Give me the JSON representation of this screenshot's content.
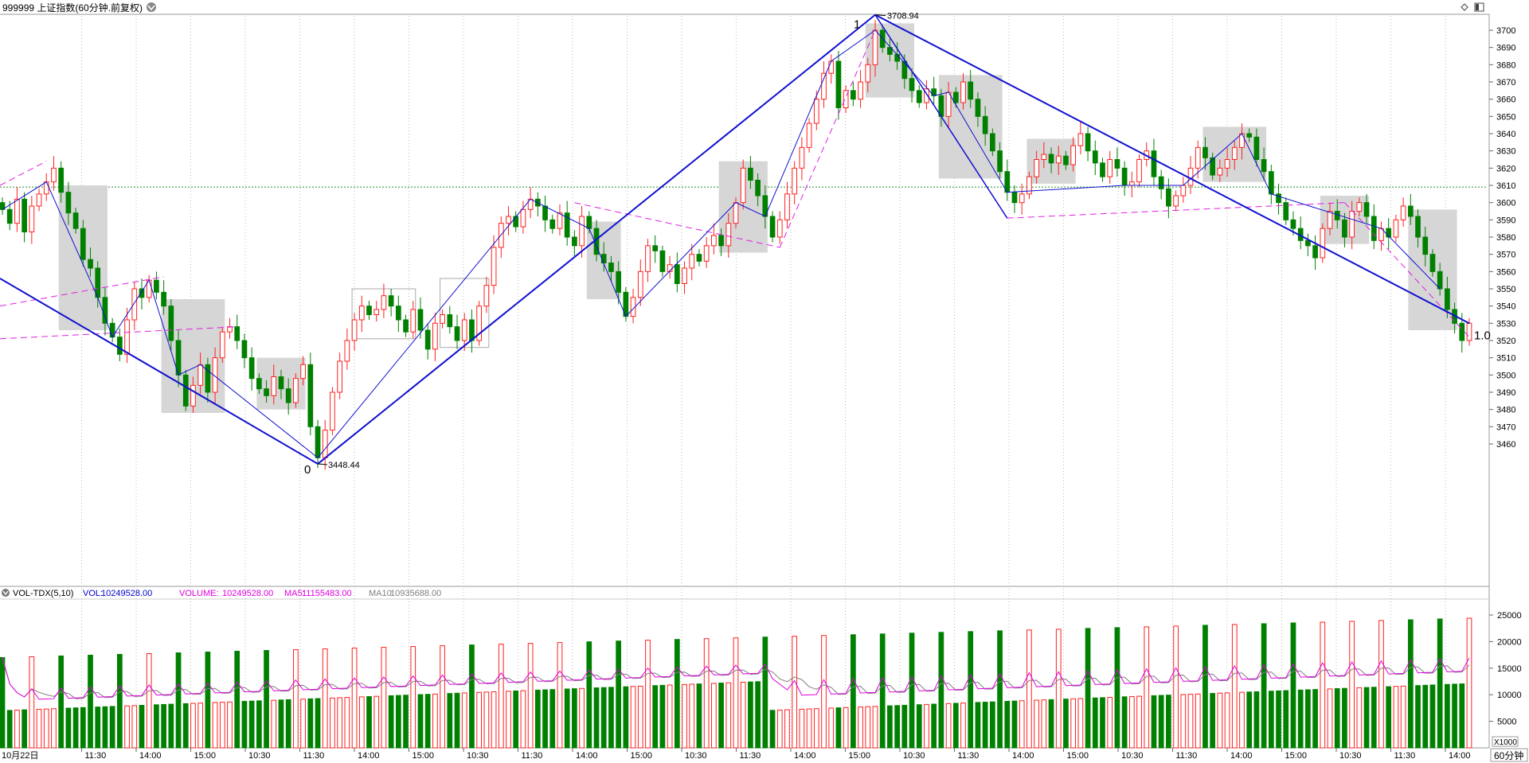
{
  "header": {
    "title": "999999 上证指数(60分钟.前复权)"
  },
  "volume_header": {
    "name": "VOL-TDX(5,10)",
    "vol_label": "VOL:",
    "vol_value": "10249528.00",
    "volume_label": "VOLUME:",
    "volume_value": "10249528.00",
    "ma5_label": "MA5:",
    "ma5_value": "11155483.00",
    "ma10_label": "MA10:",
    "ma10_value": "10935688.00"
  },
  "period_label": "60分钟",
  "multiplier_label": "X1000",
  "annotations": {
    "wave_start": "0",
    "wave_end": "1",
    "ratio": "1.0",
    "high_text": "3708.94",
    "low_text": "3448.44"
  },
  "colors": {
    "up": "#ff2020",
    "down": "#008000",
    "wave": "#1010d0",
    "dash": "#e020e0",
    "box": "#d6d6d6",
    "ma5": "#e000e0",
    "ma10": "#808080"
  },
  "icons": [
    "dropdown-icon",
    "diamond-icon",
    "panel-icon"
  ],
  "chart_data": {
    "type": "candlestick",
    "title": "999999 上证指数(60分钟.前复权)",
    "price_axis": {
      "min": 3450,
      "max": 3700,
      "ticks": [
        3460,
        3470,
        3480,
        3490,
        3500,
        3510,
        3520,
        3530,
        3540,
        3550,
        3560,
        3570,
        3580,
        3590,
        3600,
        3610,
        3620,
        3630,
        3640,
        3650,
        3660,
        3670,
        3680,
        3690,
        3700
      ]
    },
    "volume_axis": {
      "min": 0,
      "max": 25000,
      "ticks": [
        5000,
        10000,
        15000,
        20000,
        25000
      ],
      "unit": "X1000"
    },
    "reference_line": 3609,
    "x_ticks": [
      "10月22日",
      "11:30",
      "14:00",
      "15:00",
      "10:30",
      "11:30",
      "14:00",
      "15:00",
      "10:30",
      "11:30",
      "14:00",
      "15:00",
      "10:30",
      "11:30",
      "14:00",
      "15:00",
      "10:30",
      "11:30",
      "14:00",
      "15:00",
      "10:30",
      "11:30",
      "14:00",
      "15:00",
      "10:30",
      "11:30",
      "14:00"
    ],
    "closes": [
      3596,
      3588,
      3602,
      3583,
      3598,
      3605,
      3612,
      3620,
      3606,
      3594,
      3585,
      3567,
      3562,
      3545,
      3530,
      3522,
      3512,
      3532,
      3550,
      3545,
      3555,
      3548,
      3540,
      3520,
      3500,
      3482,
      3494,
      3506,
      3490,
      3510,
      3525,
      3528,
      3520,
      3510,
      3498,
      3492,
      3488,
      3499,
      3492,
      3484,
      3498,
      3506,
      3470,
      3452,
      3468,
      3490,
      3508,
      3520,
      3532,
      3540,
      3535,
      3538,
      3546,
      3540,
      3532,
      3525,
      3538,
      3526,
      3515,
      3530,
      3535,
      3528,
      3520,
      3532,
      3520,
      3540,
      3552,
      3574,
      3588,
      3592,
      3586,
      3596,
      3602,
      3598,
      3590,
      3585,
      3594,
      3580,
      3575,
      3592,
      3585,
      3570,
      3565,
      3560,
      3548,
      3534,
      3545,
      3560,
      3575,
      3572,
      3560,
      3564,
      3553,
      3562,
      3570,
      3566,
      3575,
      3581,
      3575,
      3588,
      3600,
      3620,
      3613,
      3604,
      3592,
      3580,
      3590,
      3605,
      3620,
      3632,
      3646,
      3660,
      3675,
      3682,
      3655,
      3665,
      3660,
      3670,
      3680,
      3700,
      3690,
      3686,
      3682,
      3672,
      3665,
      3658,
      3666,
      3662,
      3650,
      3664,
      3658,
      3670,
      3660,
      3650,
      3640,
      3630,
      3618,
      3606,
      3600,
      3605,
      3615,
      3625,
      3628,
      3623,
      3627,
      3622,
      3633,
      3640,
      3630,
      3623,
      3615,
      3625,
      3620,
      3610,
      3612,
      3625,
      3630,
      3615,
      3608,
      3598,
      3604,
      3610,
      3620,
      3632,
      3626,
      3616,
      3620,
      3625,
      3632,
      3640,
      3638,
      3625,
      3618,
      3605,
      3600,
      3590,
      3585,
      3578,
      3575,
      3568,
      3585,
      3595,
      3590,
      3580,
      3595,
      3600,
      3592,
      3578,
      3585,
      3580,
      3590,
      3598,
      3592,
      3580,
      3570,
      3560,
      3550,
      3538,
      3530,
      3520,
      3530
    ],
    "hi_low_marks": {
      "high": 3708.94,
      "low": 3448.44
    },
    "volume_series_note": "MA5 and MA10 lines overlay the volume bars"
  }
}
